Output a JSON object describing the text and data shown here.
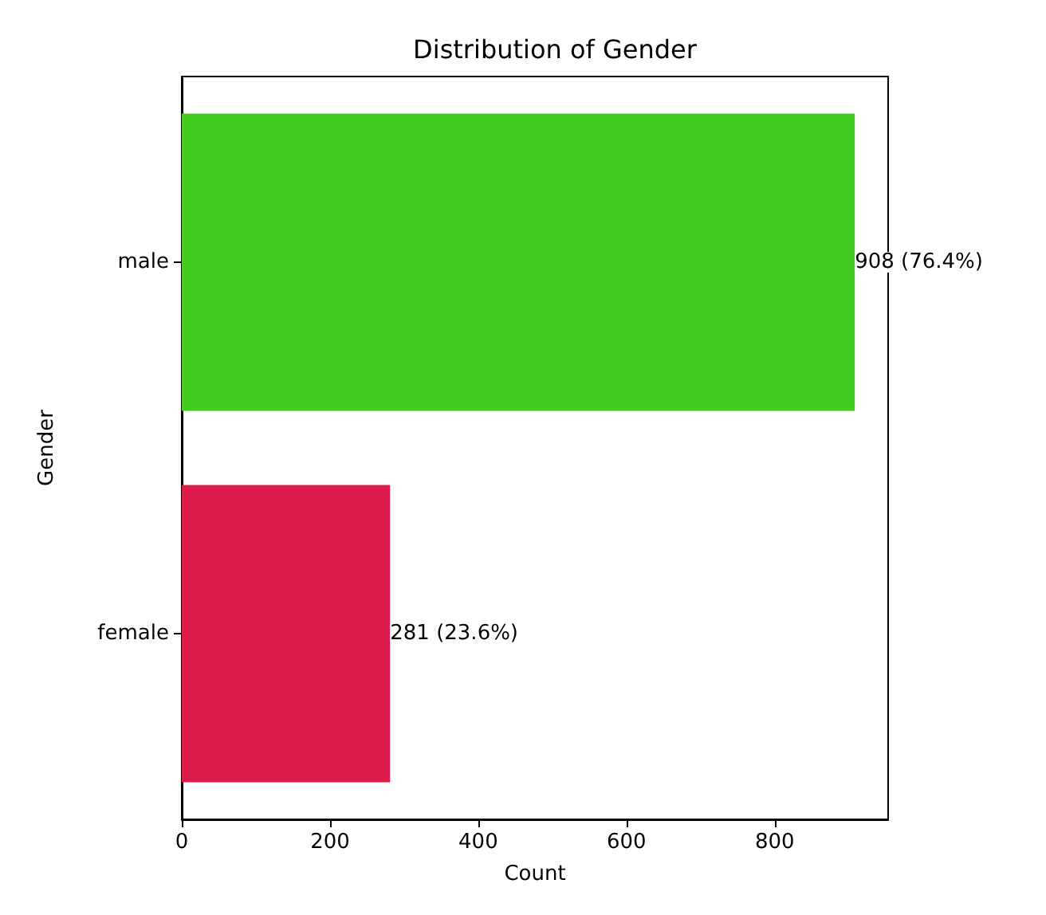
{
  "chart_data": {
    "type": "bar",
    "orientation": "horizontal",
    "title": "Distribution of Gender",
    "xlabel": "Count",
    "ylabel": "Gender",
    "categories": [
      "male",
      "female"
    ],
    "values": [
      908,
      281
    ],
    "colors": [
      "#43cc1f",
      "#dc1c4a"
    ],
    "value_labels": [
      "908 (76.4%)",
      "281 (23.6%)"
    ],
    "xlim": [
      0,
      953
    ],
    "xticks": [
      0,
      200,
      400,
      600,
      800
    ],
    "grid": false
  }
}
